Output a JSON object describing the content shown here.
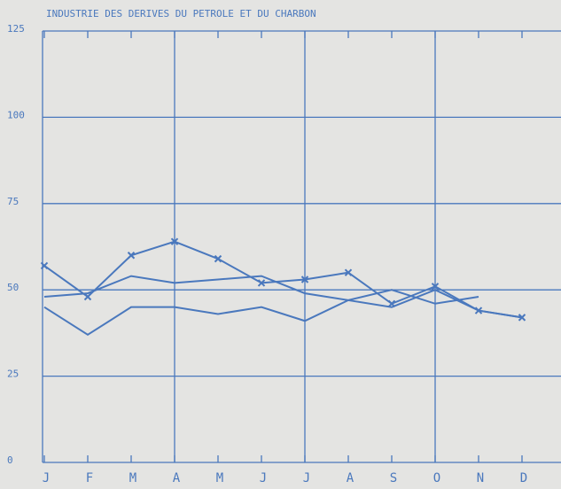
{
  "chart_data": {
    "type": "line",
    "title": "INDUSTRIE DES DERIVES DU PETROLE ET DU CHARBON",
    "categories": [
      "J",
      "F",
      "M",
      "A",
      "M",
      "J",
      "J",
      "A",
      "S",
      "O",
      "N",
      "D"
    ],
    "series": [
      {
        "color": "#4a78bd",
        "marker": "x",
        "values": [
          57,
          48,
          60,
          64,
          59,
          52,
          53,
          55,
          46,
          51,
          44,
          42
        ]
      },
      {
        "color": "#4a78bd",
        "values": [
          45,
          37,
          45,
          45,
          43,
          45,
          41,
          47,
          45,
          50,
          44,
          42
        ]
      },
      {
        "color": "#4a78bd",
        "values": [
          48,
          49,
          54,
          52,
          53,
          54,
          49,
          47,
          50,
          46,
          48,
          null
        ]
      }
    ],
    "ylim": [
      0,
      125
    ],
    "yticks": [
      0,
      25,
      50,
      75,
      100,
      125
    ],
    "grid": true
  }
}
